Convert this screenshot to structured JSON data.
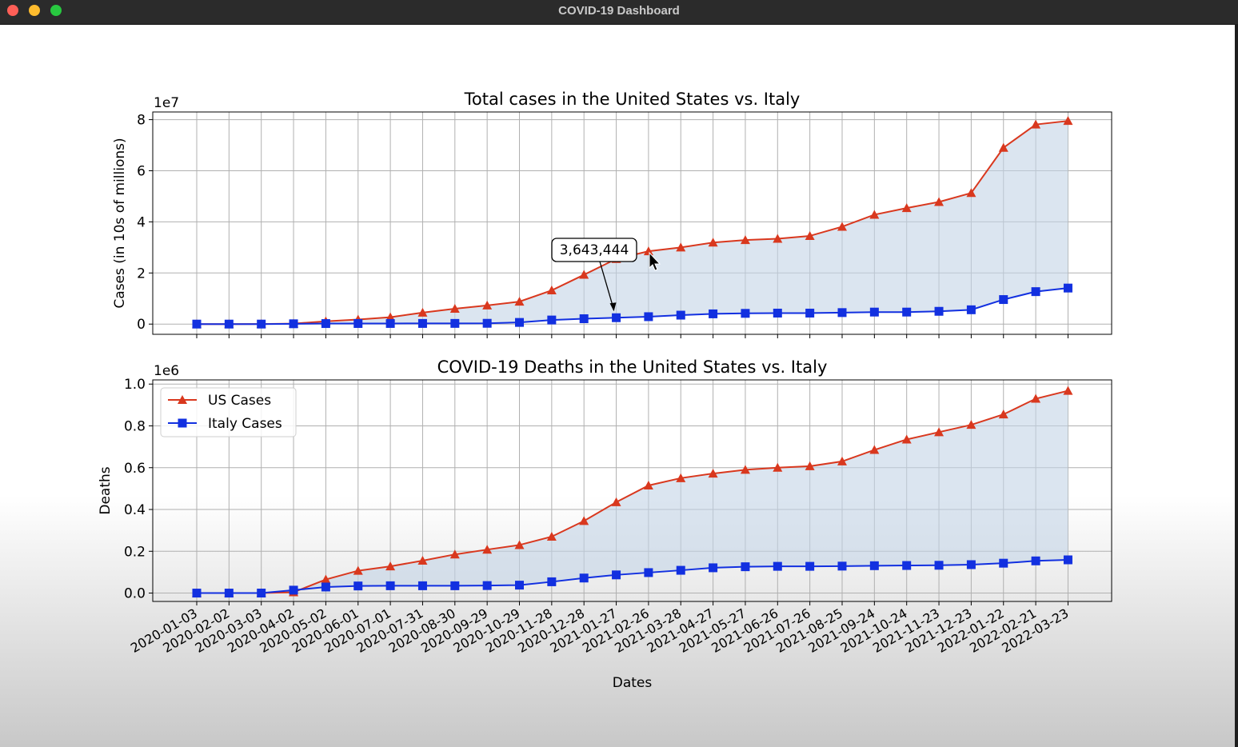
{
  "window": {
    "title": "COVID-19 Dashboard"
  },
  "colors": {
    "us": "#d9381e",
    "italy": "#1230e0",
    "fill": "#c3d3e6",
    "grid": "#b0b0b0"
  },
  "chart_data": [
    {
      "type": "line",
      "title": "Total cases in the United States vs. Italy",
      "ylabel": "Cases (in 10s of millions)",
      "xlabel": "",
      "y_offset_label": "1e7",
      "ylim": [
        -0.4,
        8.3
      ],
      "yticks": [
        0,
        2,
        4,
        6,
        8
      ],
      "ytick_labels": [
        "0",
        "2",
        "4",
        "6",
        "8"
      ],
      "grid": true,
      "fill_between": true,
      "x": [
        "2020-01-03",
        "2020-02-02",
        "2020-03-03",
        "2020-04-02",
        "2020-05-02",
        "2020-06-01",
        "2020-07-01",
        "2020-07-31",
        "2020-08-30",
        "2020-09-29",
        "2020-10-29",
        "2020-11-28",
        "2020-12-28",
        "2021-01-27",
        "2021-02-26",
        "2021-03-28",
        "2021-04-27",
        "2021-05-27",
        "2021-06-26",
        "2021-07-26",
        "2021-08-25",
        "2021-09-24",
        "2021-10-24",
        "2021-11-23",
        "2021-12-23",
        "2022-01-22",
        "2022-02-21",
        "2022-03-23"
      ],
      "series": [
        {
          "name": "US Cases",
          "marker": "triangle",
          "values": [
            0,
            0,
            0.001,
            0.02,
            0.11,
            0.18,
            0.27,
            0.45,
            0.6,
            0.73,
            0.88,
            1.32,
            1.93,
            2.55,
            2.85,
            3.0,
            3.19,
            3.29,
            3.34,
            3.45,
            3.81,
            4.28,
            4.54,
            4.78,
            5.13,
            6.9,
            7.81,
            7.95
          ]
        },
        {
          "name": "Italy Cases",
          "marker": "square",
          "values": [
            0,
            0,
            0.0003,
            0.012,
            0.021,
            0.023,
            0.024,
            0.025,
            0.027,
            0.031,
            0.065,
            0.16,
            0.21,
            0.25,
            0.29,
            0.35,
            0.4,
            0.42,
            0.43,
            0.43,
            0.45,
            0.47,
            0.47,
            0.5,
            0.56,
            0.96,
            1.27,
            1.41
          ]
        }
      ],
      "annotation": {
        "text": "3,643,444",
        "target_index": 13
      }
    },
    {
      "type": "line",
      "title": "COVID-19 Deaths in the United States vs. Italy",
      "ylabel": "Deaths",
      "xlabel": "Dates",
      "y_offset_label": "1e6",
      "ylim": [
        -0.04,
        1.02
      ],
      "yticks": [
        0,
        0.2,
        0.4,
        0.6,
        0.8,
        1.0
      ],
      "ytick_labels": [
        "0.0",
        "0.2",
        "0.4",
        "0.6",
        "0.8",
        "1.0"
      ],
      "grid": true,
      "fill_between": true,
      "legend": {
        "placement": "upper-left",
        "entries": [
          "US Cases",
          "Italy Cases"
        ]
      },
      "x": [
        "2020-01-03",
        "2020-02-02",
        "2020-03-03",
        "2020-04-02",
        "2020-05-02",
        "2020-06-01",
        "2020-07-01",
        "2020-07-31",
        "2020-08-30",
        "2020-09-29",
        "2020-10-29",
        "2020-11-28",
        "2020-12-28",
        "2021-01-27",
        "2021-02-26",
        "2021-03-28",
        "2021-04-27",
        "2021-05-27",
        "2021-06-26",
        "2021-07-26",
        "2021-08-25",
        "2021-09-24",
        "2021-10-24",
        "2021-11-23",
        "2021-12-23",
        "2022-01-22",
        "2022-02-21",
        "2022-03-23"
      ],
      "series": [
        {
          "name": "US Cases",
          "marker": "triangle",
          "values": [
            0,
            0,
            0.0001,
            0.004,
            0.065,
            0.107,
            0.128,
            0.155,
            0.185,
            0.208,
            0.23,
            0.27,
            0.345,
            0.435,
            0.515,
            0.55,
            0.572,
            0.59,
            0.6,
            0.607,
            0.63,
            0.685,
            0.735,
            0.77,
            0.805,
            0.855,
            0.93,
            0.968
          ]
        },
        {
          "name": "Italy Cases",
          "marker": "square",
          "values": [
            0,
            0,
            0.0001,
            0.014,
            0.029,
            0.034,
            0.035,
            0.035,
            0.035,
            0.036,
            0.038,
            0.054,
            0.072,
            0.087,
            0.098,
            0.109,
            0.121,
            0.126,
            0.128,
            0.128,
            0.129,
            0.131,
            0.132,
            0.133,
            0.136,
            0.143,
            0.154,
            0.159
          ]
        }
      ]
    }
  ]
}
